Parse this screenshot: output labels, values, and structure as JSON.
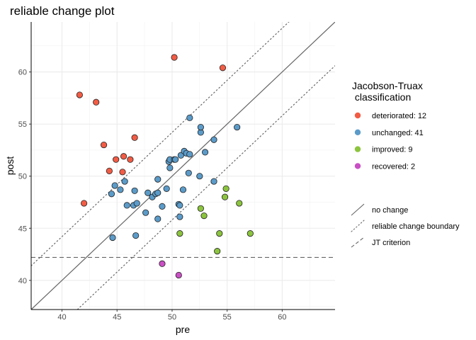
{
  "chart_data": {
    "type": "scatter",
    "title": "reliable change plot",
    "xlabel": "pre",
    "ylabel": "post",
    "xlim": [
      37.2,
      64.8
    ],
    "ylim": [
      37.2,
      64.8
    ],
    "x_ticks": [
      40,
      45,
      50,
      55,
      60
    ],
    "y_ticks": [
      40,
      45,
      50,
      55,
      60
    ],
    "grid": true,
    "legend_placement": "right",
    "legend_title_lines": [
      "Jacobson-Truax",
      " classification"
    ],
    "reliable_change_offset": 4.2,
    "jt_criterion": 42.2,
    "lines_legend": [
      {
        "key": "no-change",
        "label": "no change",
        "style": "solid"
      },
      {
        "key": "reliable-change-boundary",
        "label": "reliable change boundary",
        "style": "dotted"
      },
      {
        "key": "jt-criterion",
        "label": "JT criterion",
        "style": "dashed"
      }
    ],
    "series": [
      {
        "name": "deteriorated: 12",
        "color": "#f25c45",
        "points": [
          [
            41.6,
            57.8
          ],
          [
            43.1,
            57.1
          ],
          [
            43.8,
            53.0
          ],
          [
            44.3,
            50.5
          ],
          [
            44.9,
            51.6
          ],
          [
            45.5,
            50.4
          ],
          [
            45.6,
            51.9
          ],
          [
            46.2,
            51.6
          ],
          [
            46.6,
            53.7
          ],
          [
            50.2,
            61.4
          ],
          [
            54.6,
            60.4
          ],
          [
            42.0,
            47.4
          ]
        ]
      },
      {
        "name": "unchanged: 41",
        "color": "#5b9bc9",
        "points": [
          [
            44.6,
            44.1
          ],
          [
            44.5,
            48.3
          ],
          [
            44.8,
            49.1
          ],
          [
            45.3,
            48.7
          ],
          [
            45.7,
            49.5
          ],
          [
            45.9,
            47.2
          ],
          [
            46.5,
            47.2
          ],
          [
            46.6,
            48.6
          ],
          [
            46.8,
            47.4
          ],
          [
            46.7,
            44.3
          ],
          [
            47.6,
            46.5
          ],
          [
            47.8,
            48.4
          ],
          [
            48.2,
            48.0
          ],
          [
            48.5,
            48.3
          ],
          [
            48.7,
            49.7
          ],
          [
            48.7,
            48.4
          ],
          [
            48.7,
            45.9
          ],
          [
            49.1,
            47.1
          ],
          [
            49.5,
            48.8
          ],
          [
            49.7,
            51.4
          ],
          [
            49.8,
            50.8
          ],
          [
            49.8,
            51.6
          ],
          [
            50.2,
            51.6
          ],
          [
            50.3,
            51.6
          ],
          [
            50.6,
            47.3
          ],
          [
            50.7,
            47.2
          ],
          [
            50.7,
            46.1
          ],
          [
            50.8,
            52.0
          ],
          [
            51.0,
            48.7
          ],
          [
            51.1,
            52.4
          ],
          [
            51.3,
            52.2
          ],
          [
            51.6,
            52.1
          ],
          [
            51.5,
            50.3
          ],
          [
            51.6,
            55.6
          ],
          [
            52.5,
            50.0
          ],
          [
            52.6,
            54.2
          ],
          [
            52.6,
            54.7
          ],
          [
            53.0,
            52.3
          ],
          [
            53.8,
            53.5
          ],
          [
            53.8,
            49.5
          ],
          [
            55.9,
            54.7
          ]
        ]
      },
      {
        "name": "improved: 9",
        "color": "#8cc43e",
        "points": [
          [
            50.7,
            44.5
          ],
          [
            52.6,
            46.9
          ],
          [
            52.9,
            46.2
          ],
          [
            54.1,
            42.8
          ],
          [
            54.3,
            44.5
          ],
          [
            54.8,
            48.0
          ],
          [
            54.9,
            48.8
          ],
          [
            56.1,
            47.4
          ],
          [
            57.1,
            44.5
          ]
        ]
      },
      {
        "name": "recovered: 2",
        "color": "#c94fc4",
        "points": [
          [
            49.1,
            41.6
          ],
          [
            50.6,
            40.5
          ]
        ]
      }
    ]
  }
}
